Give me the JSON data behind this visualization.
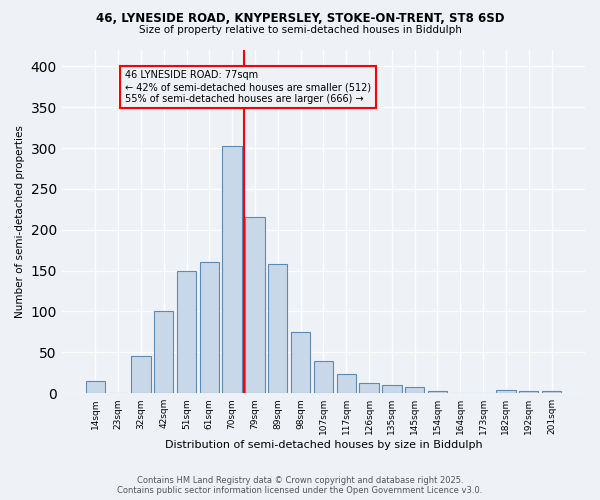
{
  "title1": "46, LYNESIDE ROAD, KNYPERSLEY, STOKE-ON-TRENT, ST8 6SD",
  "title2": "Size of property relative to semi-detached houses in Biddulph",
  "xlabel": "Distribution of semi-detached houses by size in Biddulph",
  "ylabel": "Number of semi-detached properties",
  "categories": [
    "14sqm",
    "23sqm",
    "32sqm",
    "42sqm",
    "51sqm",
    "61sqm",
    "70sqm",
    "79sqm",
    "89sqm",
    "98sqm",
    "107sqm",
    "117sqm",
    "126sqm",
    "135sqm",
    "145sqm",
    "154sqm",
    "164sqm",
    "173sqm",
    "182sqm",
    "192sqm",
    "201sqm"
  ],
  "values": [
    15,
    0,
    46,
    100,
    150,
    160,
    302,
    216,
    158,
    75,
    40,
    24,
    13,
    10,
    8,
    3,
    0,
    0,
    4,
    3,
    3
  ],
  "bar_color": "#c8d8e8",
  "bar_edge_color": "#5b8ab5",
  "vline_x": 7.0,
  "vline_color": "red",
  "annotation_title": "46 LYNESIDE ROAD: 77sqm",
  "annotation_line1": "← 42% of semi-detached houses are smaller (512)",
  "annotation_line2": "55% of semi-detached houses are larger (666) →",
  "annotation_box_color": "red",
  "ylim": [
    0,
    420
  ],
  "yticks": [
    0,
    50,
    100,
    150,
    200,
    250,
    300,
    350,
    400
  ],
  "footer1": "Contains HM Land Registry data © Crown copyright and database right 2025.",
  "footer2": "Contains public sector information licensed under the Open Government Licence v3.0.",
  "bg_color": "#eef2f7"
}
